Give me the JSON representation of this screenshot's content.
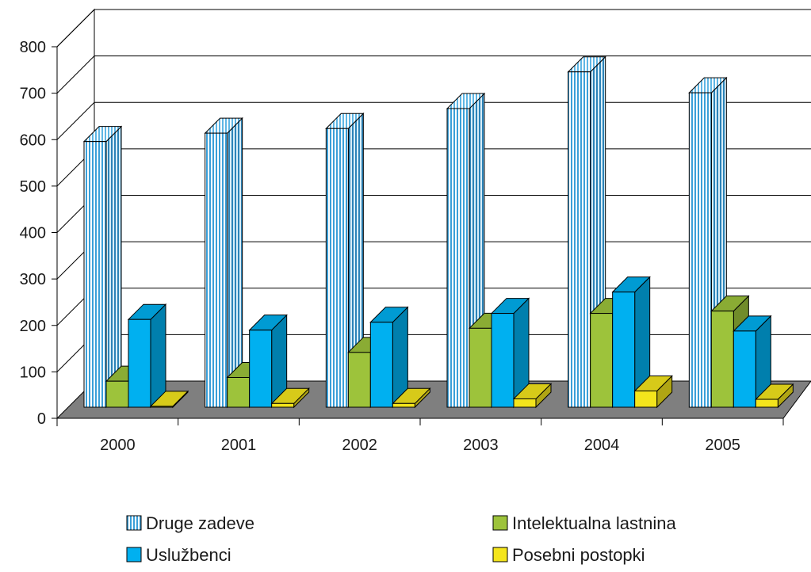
{
  "chart_data": {
    "type": "bar",
    "style": "3d-clustered-column",
    "categories": [
      "2000",
      "2001",
      "2002",
      "2003",
      "2004",
      "2005"
    ],
    "series": [
      {
        "name": "Druge zadeve",
        "values": [
          572,
          590,
          600,
          643,
          722,
          677
        ],
        "color": "#8fd4ef",
        "pattern": "vertical-stripes"
      },
      {
        "name": "Intelektualna lastnina",
        "values": [
          56,
          64,
          118,
          170,
          202,
          207
        ],
        "color": "#9dc33b"
      },
      {
        "name": "Uslužbenci",
        "values": [
          189,
          166,
          183,
          202,
          248,
          164
        ],
        "color": "#00b0f0"
      },
      {
        "name": "Posebni postopki",
        "values": [
          2,
          8,
          8,
          18,
          35,
          17
        ],
        "color": "#f4e51c"
      }
    ],
    "y_ticks": [
      "0",
      "100",
      "200",
      "300",
      "400",
      "500",
      "600",
      "700",
      "800"
    ],
    "ylim": [
      0,
      800
    ],
    "grid": true,
    "floor_color": "#7f7f7f",
    "legend_position": "bottom"
  }
}
